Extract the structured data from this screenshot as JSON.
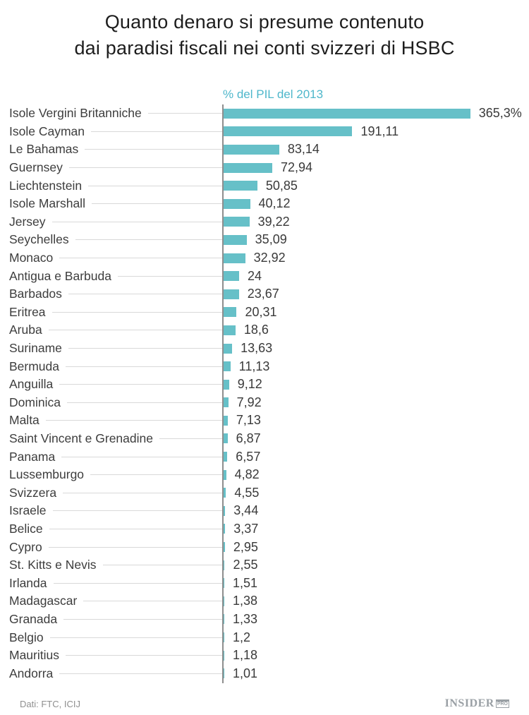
{
  "title": {
    "line1": "Quanto denaro si presume contenuto",
    "line2": "dai paradisi fiscali nei conti svizzeri di HSBC"
  },
  "chart_data": {
    "type": "bar",
    "orientation": "horizontal",
    "title": "Quanto denaro si presume contenuto dai paradisi fiscali nei conti svizzeri di HSBC",
    "axis_label": "% del PIL del 2013",
    "xlim": [
      0,
      380
    ],
    "grid": false,
    "bar_color": "#66c0c8",
    "categories": [
      "Isole Vergini Britanniche",
      "Isole Cayman",
      "Le Bahamas",
      "Guernsey",
      "Liechtenstein",
      "Isole Marshall",
      "Jersey",
      "Seychelles",
      "Monaco",
      "Antigua e Barbuda",
      "Barbados",
      "Eritrea",
      "Aruba",
      "Suriname",
      "Bermuda",
      "Anguilla",
      "Dominica",
      "Malta",
      "Saint Vincent e Grenadine",
      "Panama",
      "Lussemburgo",
      "Svizzera",
      "Israele",
      "Belice",
      "Cypro",
      "St. Kitts e Nevis",
      "Irlanda",
      "Madagascar",
      "Granada",
      "Belgio",
      "Mauritius",
      "Andorra"
    ],
    "values": [
      365.3,
      191.11,
      83.14,
      72.94,
      50.85,
      40.12,
      39.22,
      35.09,
      32.92,
      24,
      23.67,
      20.31,
      18.6,
      13.63,
      11.13,
      9.12,
      7.92,
      7.13,
      6.87,
      6.57,
      4.82,
      4.55,
      3.44,
      3.37,
      2.95,
      2.55,
      1.51,
      1.38,
      1.33,
      1.2,
      1.18,
      1.01
    ],
    "value_labels": [
      "365,3%",
      "191,11",
      "83,14",
      "72,94",
      "50,85",
      "40,12",
      "39,22",
      "35,09",
      "32,92",
      "24",
      "23,67",
      "20,31",
      "18,6",
      "13,63",
      "11,13",
      "9,12",
      "7,92",
      "7,13",
      "6,87",
      "6,57",
      "4,82",
      "4,55",
      "3,44",
      "3,37",
      "2,95",
      "2,55",
      "1,51",
      "1,38",
      "1,33",
      "1,2",
      "1,18",
      "1,01"
    ]
  },
  "footer": {
    "source": "Dati: FTC, ICIJ",
    "logo_main": "INSIDER",
    "logo_suffix": "PRO"
  }
}
